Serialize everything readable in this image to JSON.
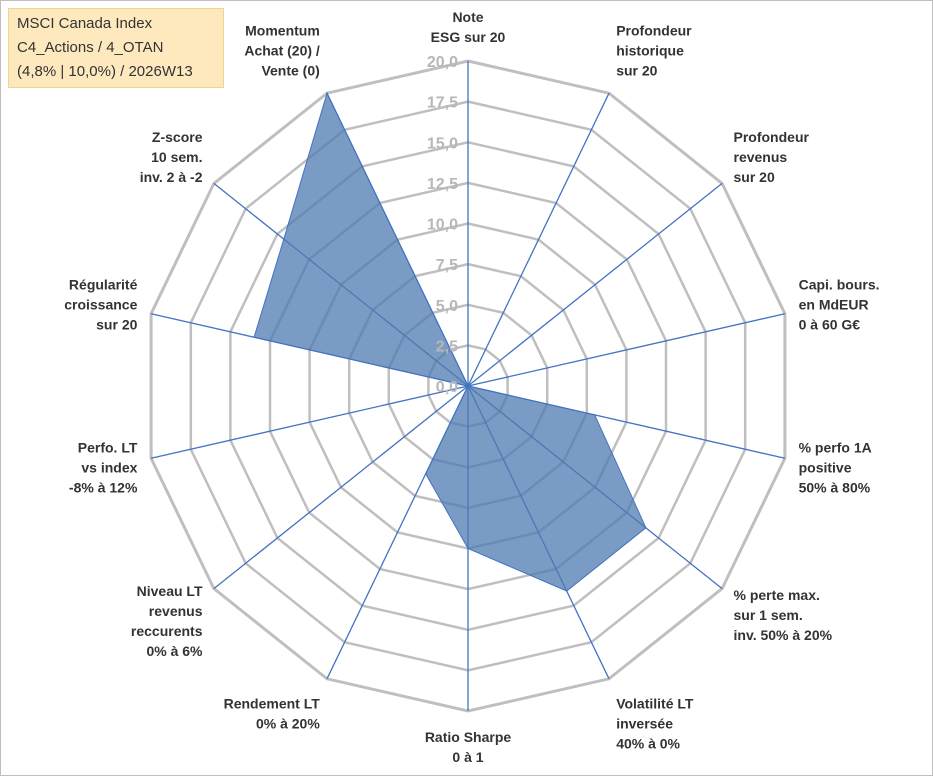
{
  "info_box": {
    "line1": "MSCI Canada Index",
    "line2": "C4_Actions / 4_OTAN",
    "line3": "(4,8% | 10,0%) / 2026W13"
  },
  "colors": {
    "fill": "#4e7bb0",
    "stroke": "#4472c4",
    "grid": "#bfbfbf",
    "tick_text": "#b7b7b7",
    "label_text": "#333333",
    "info_bg": "#fde9bd"
  },
  "chart_data": {
    "type": "radar",
    "title": "",
    "rmax": 20,
    "grid_levels": 8,
    "tick_labels": [
      "0,0",
      "2,5",
      "5,0",
      "7,5",
      "10,0",
      "12,5",
      "15,0",
      "17,5",
      "20,0"
    ],
    "categories": [
      [
        "Note",
        "ESG sur 20"
      ],
      [
        "Profondeur",
        "historique",
        "sur 20"
      ],
      [
        "Profondeur",
        "revenus",
        "sur 20"
      ],
      [
        "Capi. bours.",
        "en MdEUR",
        "0 à 60 G€"
      ],
      [
        "% perfo 1A",
        "positive",
        "50% à 80%"
      ],
      [
        "% perte max.",
        "sur 1 sem.",
        "inv. 50% à 20%"
      ],
      [
        "Volatilité LT",
        "inversée",
        "40% à 0%"
      ],
      [
        "Ratio Sharpe",
        "0 à 1"
      ],
      [
        "Rendement LT",
        "0% à 20%"
      ],
      [
        "Niveau LT",
        "revenus",
        "reccurents",
        "0% à 6%"
      ],
      [
        "Perfo. LT",
        "vs index",
        "-8% à 12%"
      ],
      [
        "Régularité",
        "croissance",
        "sur 20"
      ],
      [
        "Z-score",
        "10 sem.",
        "inv. 2 à -2"
      ],
      [
        "Momentum",
        "Achat (20) /",
        "Vente (0)"
      ]
    ],
    "series": [
      {
        "name": "MSCI Canada Index",
        "values": [
          0,
          0,
          0,
          0,
          8.0,
          14.0,
          14.0,
          10.0,
          6.0,
          0,
          0,
          13.5,
          14.5,
          20.0
        ]
      }
    ]
  }
}
